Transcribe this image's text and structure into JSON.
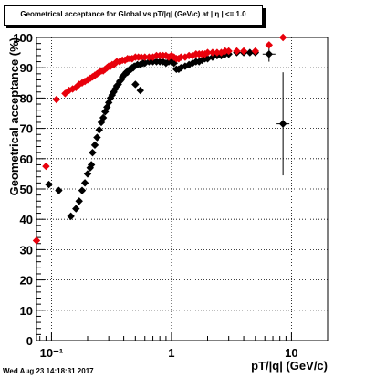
{
  "title": "Geometrical acceptance for Global vs pT/|q| (GeV/c) at | η | <= 1.0",
  "timestamp": "Wed Aug 23 14:18:31 2017",
  "chart_data": {
    "type": "scatter",
    "x_scale": "log",
    "xlabel": "pT/|q| (GeV/c)",
    "ylabel": "Geometrical acceptance (%)",
    "xlim": [
      0.075,
      20
    ],
    "ylim": [
      0,
      100
    ],
    "grid": true,
    "x_tick_labels": [
      {
        "value": 0.1,
        "text": "10⁻¹"
      },
      {
        "value": 1,
        "text": "1"
      },
      {
        "value": 10,
        "text": "10"
      }
    ],
    "y_ticks": [
      0,
      10,
      20,
      30,
      40,
      50,
      60,
      70,
      80,
      90,
      100
    ],
    "series": [
      {
        "color": "#000000",
        "marker": "diamond",
        "x": [
          0.095,
          0.115,
          0.145,
          0.16,
          0.17,
          0.18,
          0.19,
          0.2,
          0.21,
          0.215,
          0.22,
          0.23,
          0.24,
          0.25,
          0.26,
          0.27,
          0.28,
          0.29,
          0.3,
          0.31,
          0.32,
          0.33,
          0.34,
          0.35,
          0.36,
          0.37,
          0.38,
          0.39,
          0.4,
          0.41,
          0.42,
          0.43,
          0.44,
          0.45,
          0.46,
          0.47,
          0.48,
          0.49,
          0.5,
          0.52,
          0.55,
          0.55,
          0.58,
          0.6,
          0.65,
          0.7,
          0.75,
          0.8,
          0.85,
          0.9,
          0.95,
          1.0,
          1.05,
          1.1,
          1.15,
          1.2,
          1.3,
          1.4,
          1.5,
          1.6,
          1.7,
          1.8,
          1.9,
          2.0,
          2.2,
          2.4,
          2.6,
          2.8,
          3.0,
          3.5,
          4.0,
          4.5,
          5.0,
          6.5,
          8.5
        ],
        "y": [
          51.5,
          49.5,
          41,
          43.5,
          46,
          49.5,
          52,
          55,
          57,
          58,
          62,
          64.5,
          67,
          69.5,
          72,
          73.5,
          75.5,
          77,
          78.5,
          80,
          81,
          82,
          83,
          84,
          84.5,
          85.5,
          86,
          87,
          87.5,
          88,
          88.5,
          88.5,
          89,
          89.5,
          89.5,
          90,
          90,
          90.5,
          84.5,
          91,
          82.5,
          91,
          91.5,
          91.5,
          92,
          92,
          92,
          92,
          92,
          91.5,
          92,
          92,
          91.5,
          89.5,
          89.5,
          90,
          90.5,
          91,
          91.5,
          92,
          92,
          92.5,
          93,
          93,
          93.5,
          94,
          94,
          94.5,
          94.5,
          95,
          95,
          95,
          95,
          94.5,
          71.5
        ],
        "y_err": [
          0,
          0,
          0,
          0,
          0,
          0,
          0,
          0,
          0,
          0,
          0,
          0,
          0,
          0,
          0,
          0,
          0,
          0,
          0,
          0,
          0,
          0,
          0,
          0,
          0,
          0,
          0,
          0,
          0,
          0,
          0,
          0,
          0,
          0,
          0,
          0,
          0,
          0,
          0,
          0,
          0,
          0,
          0,
          0,
          0,
          0,
          0,
          0,
          0,
          0,
          0,
          0,
          0,
          0,
          0,
          0,
          0,
          0,
          0,
          0,
          0,
          0,
          0,
          0,
          0,
          0,
          0,
          0,
          0,
          0,
          0,
          0,
          0,
          2.5,
          17
        ]
      },
      {
        "color": "#e8000b",
        "marker": "diamond",
        "x": [
          0.075,
          0.09,
          0.11,
          0.13,
          0.14,
          0.15,
          0.16,
          0.17,
          0.18,
          0.19,
          0.2,
          0.21,
          0.22,
          0.23,
          0.24,
          0.25,
          0.26,
          0.27,
          0.28,
          0.29,
          0.3,
          0.31,
          0.32,
          0.33,
          0.34,
          0.35,
          0.37,
          0.39,
          0.41,
          0.43,
          0.45,
          0.47,
          0.5,
          0.53,
          0.56,
          0.6,
          0.65,
          0.7,
          0.75,
          0.8,
          0.85,
          0.9,
          0.95,
          1.0,
          1.05,
          1.1,
          1.15,
          1.2,
          1.3,
          1.4,
          1.5,
          1.6,
          1.7,
          1.8,
          1.9,
          2.0,
          2.2,
          2.4,
          2.6,
          2.8,
          3.0,
          3.5,
          4.0,
          5.0,
          6.5,
          8.5
        ],
        "y": [
          33,
          57.5,
          79.5,
          81.5,
          82.5,
          83,
          83.5,
          84.5,
          85,
          85.5,
          86,
          86.5,
          87,
          87.5,
          88,
          88.5,
          89,
          89,
          89.5,
          90,
          90.5,
          90.5,
          91,
          91,
          91.5,
          92,
          92,
          92.5,
          92.5,
          93,
          93,
          93,
          93.5,
          93.5,
          93.5,
          93.5,
          93.5,
          93.5,
          94,
          94,
          94,
          94,
          93.5,
          94,
          93.5,
          93,
          93,
          93.5,
          93.5,
          94,
          94,
          94.5,
          94.5,
          94.5,
          94.5,
          95,
          95,
          95,
          95,
          95.5,
          95.5,
          95.5,
          95.5,
          95.5,
          97.5,
          100
        ],
        "y_err": []
      }
    ]
  }
}
